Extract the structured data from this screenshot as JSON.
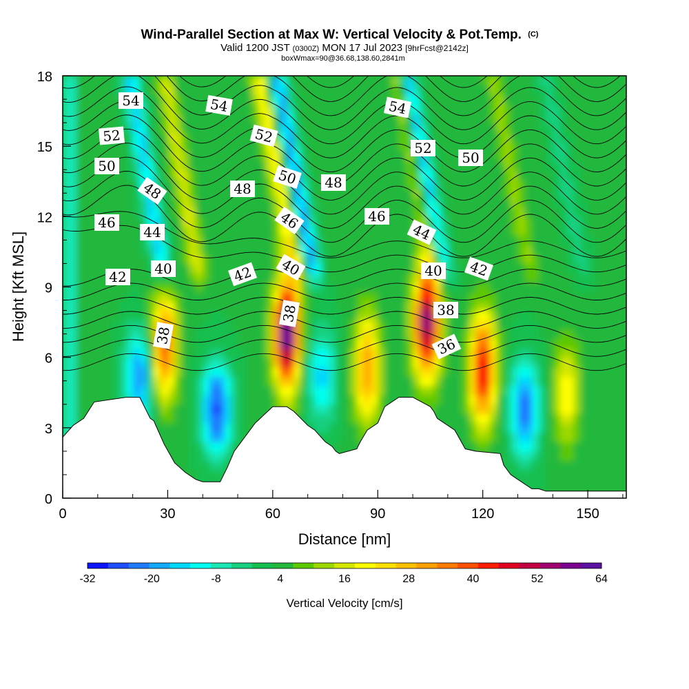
{
  "chart_data": {
    "type": "heatmap",
    "title": "Wind-Parallel Section at Max W: Vertical Velocity & Pot.Temp.",
    "title_mark": "(C)",
    "subtitle_main": "Valid 1200 JST",
    "subtitle_utc": "(0300Z)",
    "subtitle_date": "MON 17 Jul 2023",
    "subtitle_fcst": "[9hrFcst@2142z]",
    "subtitle_box": "boxWmax=90@36.68,138.60,2841m",
    "xlabel": "Distance [nm]",
    "ylabel": "Height [Kft MSL]",
    "xlim": [
      0,
      161
    ],
    "ylim": [
      0,
      18
    ],
    "xticks": [
      0,
      30,
      60,
      90,
      120,
      150
    ],
    "yticks": [
      0,
      3,
      6,
      9,
      12,
      15,
      18
    ],
    "colorbar": {
      "label": "Vertical Velocity [cm/s]",
      "range": [
        -32,
        64
      ],
      "tick_labels": [
        "-32",
        "-20",
        "-8",
        "4",
        "16",
        "28",
        "40",
        "52",
        "64"
      ],
      "colors": [
        "#0a14ff",
        "#1e4cff",
        "#1f7cff",
        "#15a8ff",
        "#00d8ff",
        "#00fff0",
        "#19e6b4",
        "#19d080",
        "#15bf50",
        "#23b83c",
        "#5cc800",
        "#9cd800",
        "#d2e600",
        "#ffff00",
        "#ffe000",
        "#ffc000",
        "#ffa000",
        "#ff7c00",
        "#ff5000",
        "#ff1e00",
        "#e00020",
        "#c00040",
        "#a00070",
        "#7a0090",
        "#5a10a0"
      ]
    },
    "updraft_cores": [
      {
        "x": 29,
        "z": 6.5,
        "w": 36
      },
      {
        "x": 64,
        "z": 7.0,
        "w": 60
      },
      {
        "x": 87,
        "z": 5.5,
        "w": 30
      },
      {
        "x": 104,
        "z": 7.5,
        "w": 56
      },
      {
        "x": 120,
        "z": 5.5,
        "w": 44
      },
      {
        "x": 144,
        "z": 4.5,
        "w": 18
      }
    ],
    "downdraft_cores": [
      {
        "x": 44,
        "z": 3.8,
        "w": -30
      },
      {
        "x": 22,
        "z": 5.2,
        "w": -24
      },
      {
        "x": 74,
        "z": 5.2,
        "w": -18
      },
      {
        "x": 132,
        "z": 3.8,
        "w": -26
      }
    ],
    "theta_contour_labels": [
      "54",
      "54",
      "54",
      "52",
      "52",
      "52",
      "50",
      "50",
      "50",
      "48",
      "48",
      "48",
      "46",
      "46",
      "46",
      "44",
      "44",
      "42",
      "42",
      "42",
      "40",
      "40",
      "40",
      "38",
      "38",
      "38",
      "36"
    ],
    "terrain": {
      "x": [
        0,
        3,
        6,
        9,
        18,
        22,
        25,
        26,
        29,
        32,
        35,
        38,
        40,
        45,
        47,
        49,
        55,
        60,
        64,
        66,
        68,
        70,
        72,
        75,
        77,
        78,
        79,
        84,
        85,
        87,
        90,
        92,
        96,
        100,
        105,
        106,
        107,
        112,
        115,
        118,
        125,
        126,
        128,
        130,
        132,
        134,
        136,
        138,
        155,
        161
      ],
      "z": [
        2.6,
        3.1,
        3.4,
        4.1,
        4.3,
        4.3,
        3.4,
        3.3,
        2.3,
        1.5,
        1.1,
        0.8,
        0.7,
        0.7,
        1.3,
        2.0,
        3.2,
        3.9,
        3.9,
        3.7,
        3.4,
        3.1,
        2.9,
        2.4,
        2.2,
        2.0,
        1.9,
        2.1,
        2.4,
        2.9,
        3.2,
        3.9,
        4.3,
        4.3,
        3.9,
        3.7,
        3.4,
        2.9,
        2.1,
        2.0,
        1.9,
        1.4,
        1.0,
        0.8,
        0.6,
        0.4,
        0.4,
        0.3,
        0.3,
        0.3
      ]
    }
  }
}
